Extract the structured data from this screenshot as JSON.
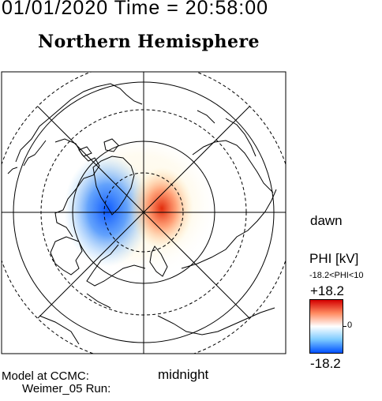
{
  "header": {
    "date_time": "01/01/2020 Time = 20:58:00",
    "hemisphere": "Northern Hemisphere"
  },
  "map": {
    "projection": "polar",
    "orientation_labels": {
      "right": "dawn",
      "bottom": "midnight"
    },
    "field": "electric potential",
    "cells": [
      {
        "name": "negative-cell",
        "sign": "negative",
        "color": "#0050ff"
      },
      {
        "name": "positive-cell",
        "sign": "positive",
        "color": "#e02000"
      }
    ]
  },
  "footer": {
    "model_line1": "Model at CCMC:",
    "model_line2": "Weimer_05 Run:"
  },
  "colorbar": {
    "title": "PHI [kV]",
    "range_text": "-18.2<PHI<10",
    "max_label": "+18.2",
    "zero_label": "0",
    "min_label": "-18.2",
    "max_value": 18.2,
    "min_value": -18.2,
    "colors": [
      "#d40000",
      "#ff8a60",
      "#ffffff",
      "#7ccaff",
      "#0050ff"
    ]
  }
}
